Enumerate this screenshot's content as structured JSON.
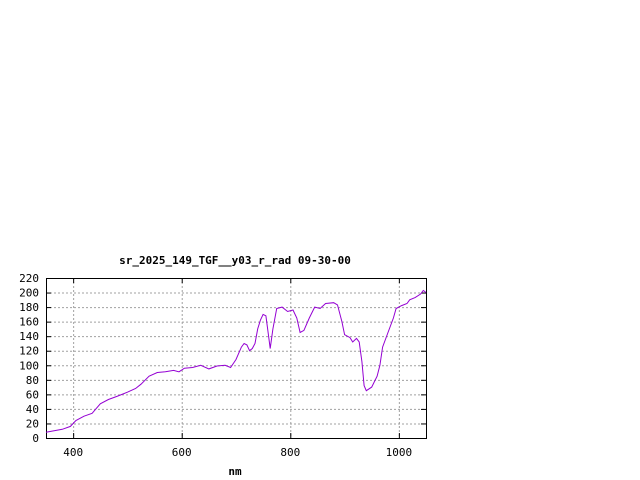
{
  "chart_data": {
    "type": "line",
    "title": "sr_2025_149_TGF__y03_r_rad 09-30-00",
    "xlabel": "nm",
    "ylabel": "",
    "xlim": [
      350,
      1050
    ],
    "ylim": [
      0,
      220
    ],
    "x_ticks": [
      400,
      600,
      800,
      1000
    ],
    "y_ticks": [
      0,
      20,
      40,
      60,
      80,
      100,
      120,
      140,
      160,
      180,
      200,
      220
    ],
    "grid": true,
    "series": [
      {
        "color": "#9400d3",
        "points": [
          [
            350,
            8
          ],
          [
            365,
            10
          ],
          [
            380,
            12
          ],
          [
            395,
            16
          ],
          [
            405,
            24
          ],
          [
            420,
            30
          ],
          [
            435,
            34
          ],
          [
            450,
            47
          ],
          [
            465,
            53
          ],
          [
            480,
            57
          ],
          [
            490,
            60
          ],
          [
            500,
            63
          ],
          [
            515,
            68
          ],
          [
            525,
            74
          ],
          [
            540,
            85
          ],
          [
            555,
            90
          ],
          [
            570,
            91
          ],
          [
            585,
            93
          ],
          [
            595,
            91
          ],
          [
            605,
            96
          ],
          [
            620,
            97
          ],
          [
            635,
            100
          ],
          [
            650,
            95
          ],
          [
            665,
            99
          ],
          [
            680,
            100
          ],
          [
            690,
            97
          ],
          [
            700,
            108
          ],
          [
            710,
            125
          ],
          [
            715,
            130
          ],
          [
            720,
            128
          ],
          [
            725,
            120
          ],
          [
            730,
            123
          ],
          [
            735,
            130
          ],
          [
            740,
            150
          ],
          [
            745,
            162
          ],
          [
            750,
            170
          ],
          [
            755,
            168
          ],
          [
            760,
            140
          ],
          [
            763,
            123
          ],
          [
            768,
            150
          ],
          [
            775,
            178
          ],
          [
            785,
            180
          ],
          [
            795,
            174
          ],
          [
            805,
            176
          ],
          [
            812,
            165
          ],
          [
            818,
            145
          ],
          [
            825,
            148
          ],
          [
            835,
            165
          ],
          [
            845,
            180
          ],
          [
            855,
            178
          ],
          [
            865,
            185
          ],
          [
            880,
            186
          ],
          [
            887,
            183
          ],
          [
            895,
            160
          ],
          [
            900,
            142
          ],
          [
            910,
            138
          ],
          [
            915,
            132
          ],
          [
            922,
            137
          ],
          [
            927,
            132
          ],
          [
            932,
            105
          ],
          [
            936,
            72
          ],
          [
            940,
            65
          ],
          [
            950,
            70
          ],
          [
            960,
            85
          ],
          [
            965,
            100
          ],
          [
            970,
            125
          ],
          [
            980,
            145
          ],
          [
            990,
            165
          ],
          [
            995,
            178
          ],
          [
            1005,
            182
          ],
          [
            1015,
            185
          ],
          [
            1020,
            190
          ],
          [
            1030,
            193
          ],
          [
            1040,
            198
          ],
          [
            1045,
            203
          ],
          [
            1050,
            200
          ]
        ]
      }
    ]
  }
}
